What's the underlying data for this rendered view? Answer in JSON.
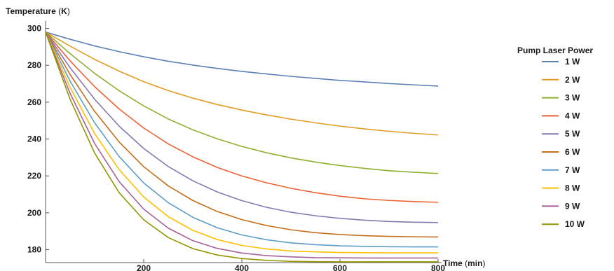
{
  "chart_data": {
    "type": "line",
    "xlabel": {
      "name": "Time",
      "unit": "min"
    },
    "ylabel": {
      "name": "Temperature",
      "unit": "K"
    },
    "xlim": [
      0,
      800
    ],
    "ylim": [
      173,
      304
    ],
    "x_ticks": [
      200,
      400,
      600,
      800
    ],
    "y_ticks": [
      180,
      200,
      220,
      240,
      260,
      280,
      300
    ],
    "grid": false,
    "legend": {
      "title": "Pump Laser Power",
      "position": "right"
    },
    "x": [
      0,
      50,
      100,
      150,
      200,
      250,
      300,
      350,
      400,
      450,
      500,
      550,
      600,
      650,
      700,
      750,
      800
    ],
    "series": [
      {
        "name": "1 W",
        "color": "#5e81b5",
        "values": [
          298,
          294.1,
          290.5,
          287.4,
          284.6,
          282.2,
          280.1,
          278.3,
          276.7,
          275.3,
          274.0,
          272.9,
          271.8,
          271.0,
          270.1,
          269.4,
          268.7
        ]
      },
      {
        "name": "2 W",
        "color": "#e19c24",
        "values": [
          298,
          290.4,
          283.2,
          276.8,
          271.1,
          266.3,
          262.2,
          258.7,
          255.7,
          253.1,
          250.8,
          248.8,
          247.0,
          245.5,
          244.2,
          243.1,
          242.2
        ]
      },
      {
        "name": "3 W",
        "color": "#8fb032",
        "values": [
          298,
          286.3,
          275.6,
          266.2,
          258.0,
          250.9,
          245.0,
          240.1,
          236.0,
          232.6,
          229.8,
          227.5,
          225.6,
          224.1,
          222.8,
          222.0,
          221.3
        ]
      },
      {
        "name": "4 W",
        "color": "#eb6235",
        "values": [
          298,
          282.4,
          268.4,
          256.3,
          246.0,
          237.4,
          230.4,
          224.6,
          220.0,
          216.3,
          213.3,
          210.9,
          209.0,
          207.6,
          206.7,
          206.1,
          205.7
        ]
      },
      {
        "name": "5 W",
        "color": "#8778b3",
        "values": [
          298,
          278.7,
          261.6,
          247.0,
          234.9,
          225.1,
          217.4,
          211.3,
          206.6,
          203.0,
          200.3,
          198.4,
          197.0,
          196.0,
          195.3,
          194.9,
          194.7
        ]
      },
      {
        "name": "6 W",
        "color": "#c56e1a",
        "values": [
          298,
          275.0,
          255.0,
          238.4,
          225.0,
          214.6,
          206.7,
          200.7,
          196.3,
          193.1,
          190.8,
          189.2,
          188.2,
          187.6,
          187.2,
          187.0,
          186.9
        ]
      },
      {
        "name": "7 W",
        "color": "#5d9ec7",
        "values": [
          298,
          271.4,
          248.8,
          230.5,
          216.2,
          205.5,
          197.6,
          191.9,
          188.0,
          185.4,
          183.7,
          182.7,
          182.1,
          181.8,
          181.6,
          181.5,
          181.5
        ]
      },
      {
        "name": "8 W",
        "color": "#ffbf00",
        "values": [
          298,
          268.0,
          243.0,
          223.4,
          208.6,
          197.9,
          190.5,
          185.5,
          182.3,
          180.4,
          179.3,
          178.8,
          178.5,
          178.4,
          178.3,
          178.3,
          178.3
        ]
      },
      {
        "name": "9 W",
        "color": "#a5609d",
        "values": [
          298,
          264.8,
          237.6,
          216.9,
          202.0,
          191.7,
          184.9,
          180.7,
          178.2,
          176.8,
          176.1,
          175.7,
          175.6,
          175.5,
          175.5,
          175.5,
          175.5
        ]
      },
      {
        "name": "10 W",
        "color": "#929600",
        "values": [
          298,
          261.6,
          232.4,
          210.9,
          196.2,
          186.6,
          180.6,
          177.1,
          175.2,
          174.2,
          173.7,
          173.5,
          173.4,
          173.4,
          173.4,
          173.4,
          173.4
        ]
      }
    ]
  }
}
